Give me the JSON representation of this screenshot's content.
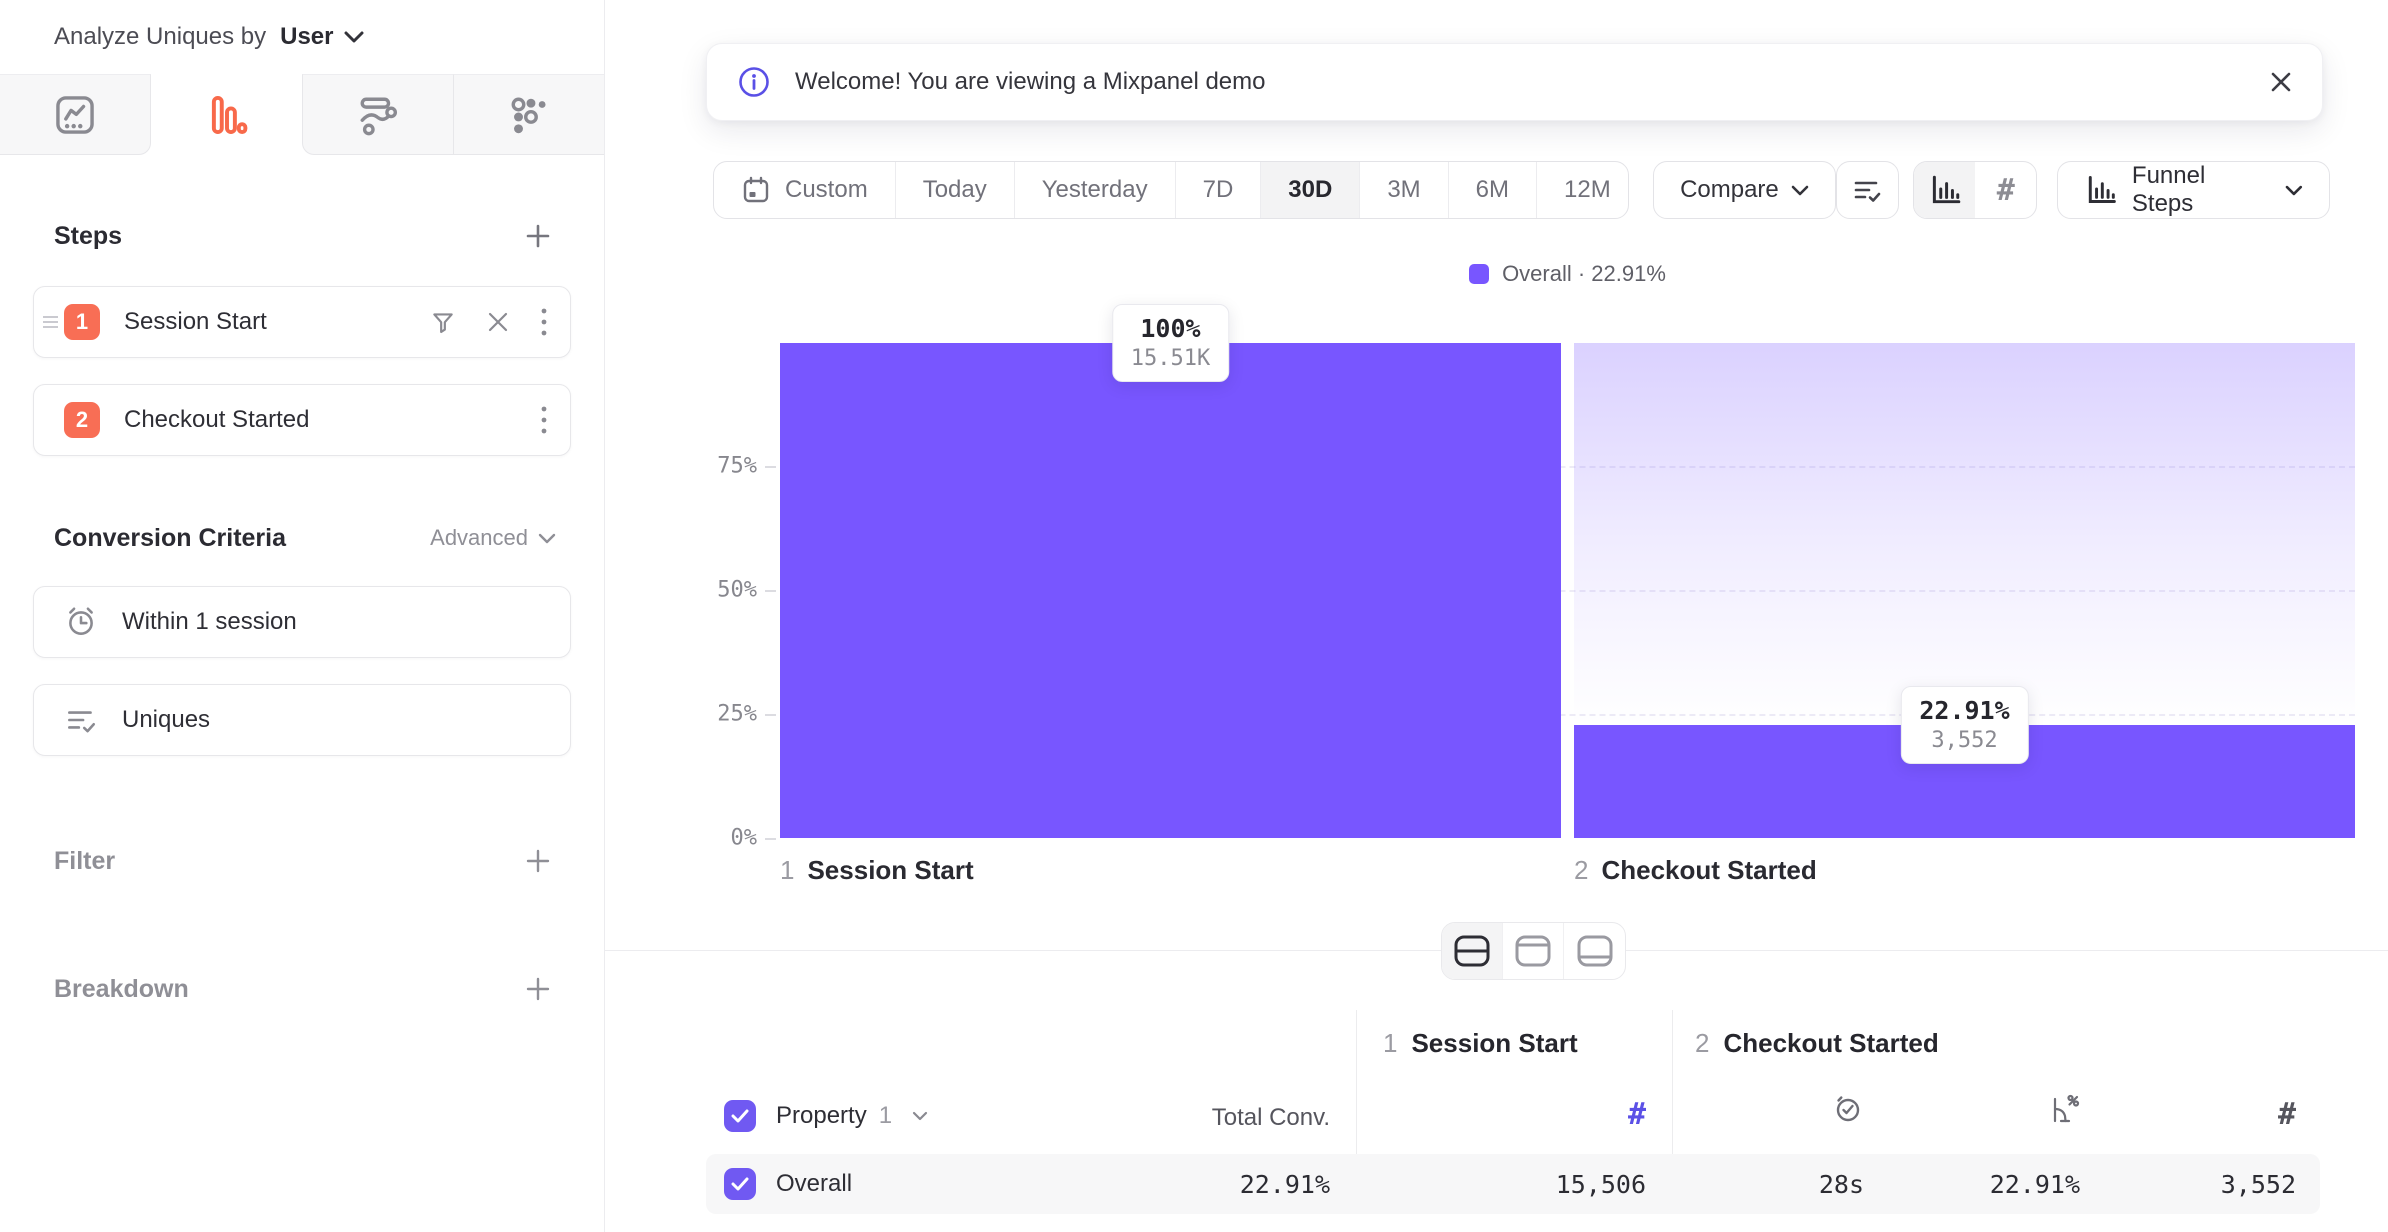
{
  "sidebar": {
    "analyze_label": "Analyze Uniques by",
    "analyze_value": "User",
    "tabs": [
      {
        "icon": "insights-chart-icon",
        "active": false
      },
      {
        "icon": "funnel-bars-icon",
        "active": true
      },
      {
        "icon": "flows-icon",
        "active": false
      },
      {
        "icon": "retention-grid-icon",
        "active": false
      }
    ],
    "steps": {
      "title": "Steps",
      "items": [
        {
          "num": "1",
          "label": "Session Start"
        },
        {
          "num": "2",
          "label": "Checkout Started"
        }
      ]
    },
    "conversion": {
      "title": "Conversion Criteria",
      "advanced_label": "Advanced",
      "items": [
        {
          "icon": "alarm-clock-icon",
          "label": "Within 1 session"
        },
        {
          "icon": "list-check-icon",
          "label": "Uniques"
        }
      ]
    },
    "filter_label": "Filter",
    "breakdown_label": "Breakdown"
  },
  "banner": {
    "text": "Welcome! You are viewing a Mixpanel demo"
  },
  "toolbar": {
    "ranges": [
      "Custom",
      "Today",
      "Yesterday",
      "7D",
      "30D",
      "3M",
      "6M",
      "12M"
    ],
    "active_range": "30D",
    "compare_label": "Compare",
    "view_dropdown_label": "Funnel Steps"
  },
  "legend": {
    "label": "Overall · 22.91%",
    "swatch_color": "#7856FF"
  },
  "chart_data": {
    "type": "bar",
    "subtype": "funnel",
    "title": "",
    "categories": [
      "Session Start",
      "Checkout Started"
    ],
    "values": [
      100,
      22.91
    ],
    "counts": [
      15506,
      3552
    ],
    "series_name": "Overall",
    "overall_conversion": "22.91%",
    "yticks": [
      "75%",
      "50%",
      "25%",
      "0%"
    ],
    "ylim": [
      0,
      100
    ],
    "grid": "dashed horizontal at 25/50/75",
    "legend_position": "top-center",
    "bar_color": "#7856FF",
    "steps": [
      {
        "index": "1",
        "label": "Session Start",
        "pct_label": "100%",
        "count_label": "15.51K"
      },
      {
        "index": "2",
        "label": "Checkout Started",
        "pct_label": "22.91%",
        "count_label": "3,552"
      }
    ]
  },
  "table": {
    "header": {
      "property_label": "Property",
      "property_index": "1",
      "total_conv_label": "Total Conv.",
      "groups": [
        {
          "index": "1",
          "label": "Session Start"
        },
        {
          "index": "2",
          "label": "Checkout Started"
        }
      ]
    },
    "row": {
      "name": "Overall",
      "total_conv": "22.91%",
      "step1_count": "15,506",
      "step2_time": "28s",
      "step2_rate": "22.91%",
      "step2_count": "3,552"
    }
  },
  "glyphs": {
    "hash": "#"
  },
  "colors": {
    "accent": "#7856FF",
    "orange": "#F86E55",
    "info": "#5A50E6"
  }
}
